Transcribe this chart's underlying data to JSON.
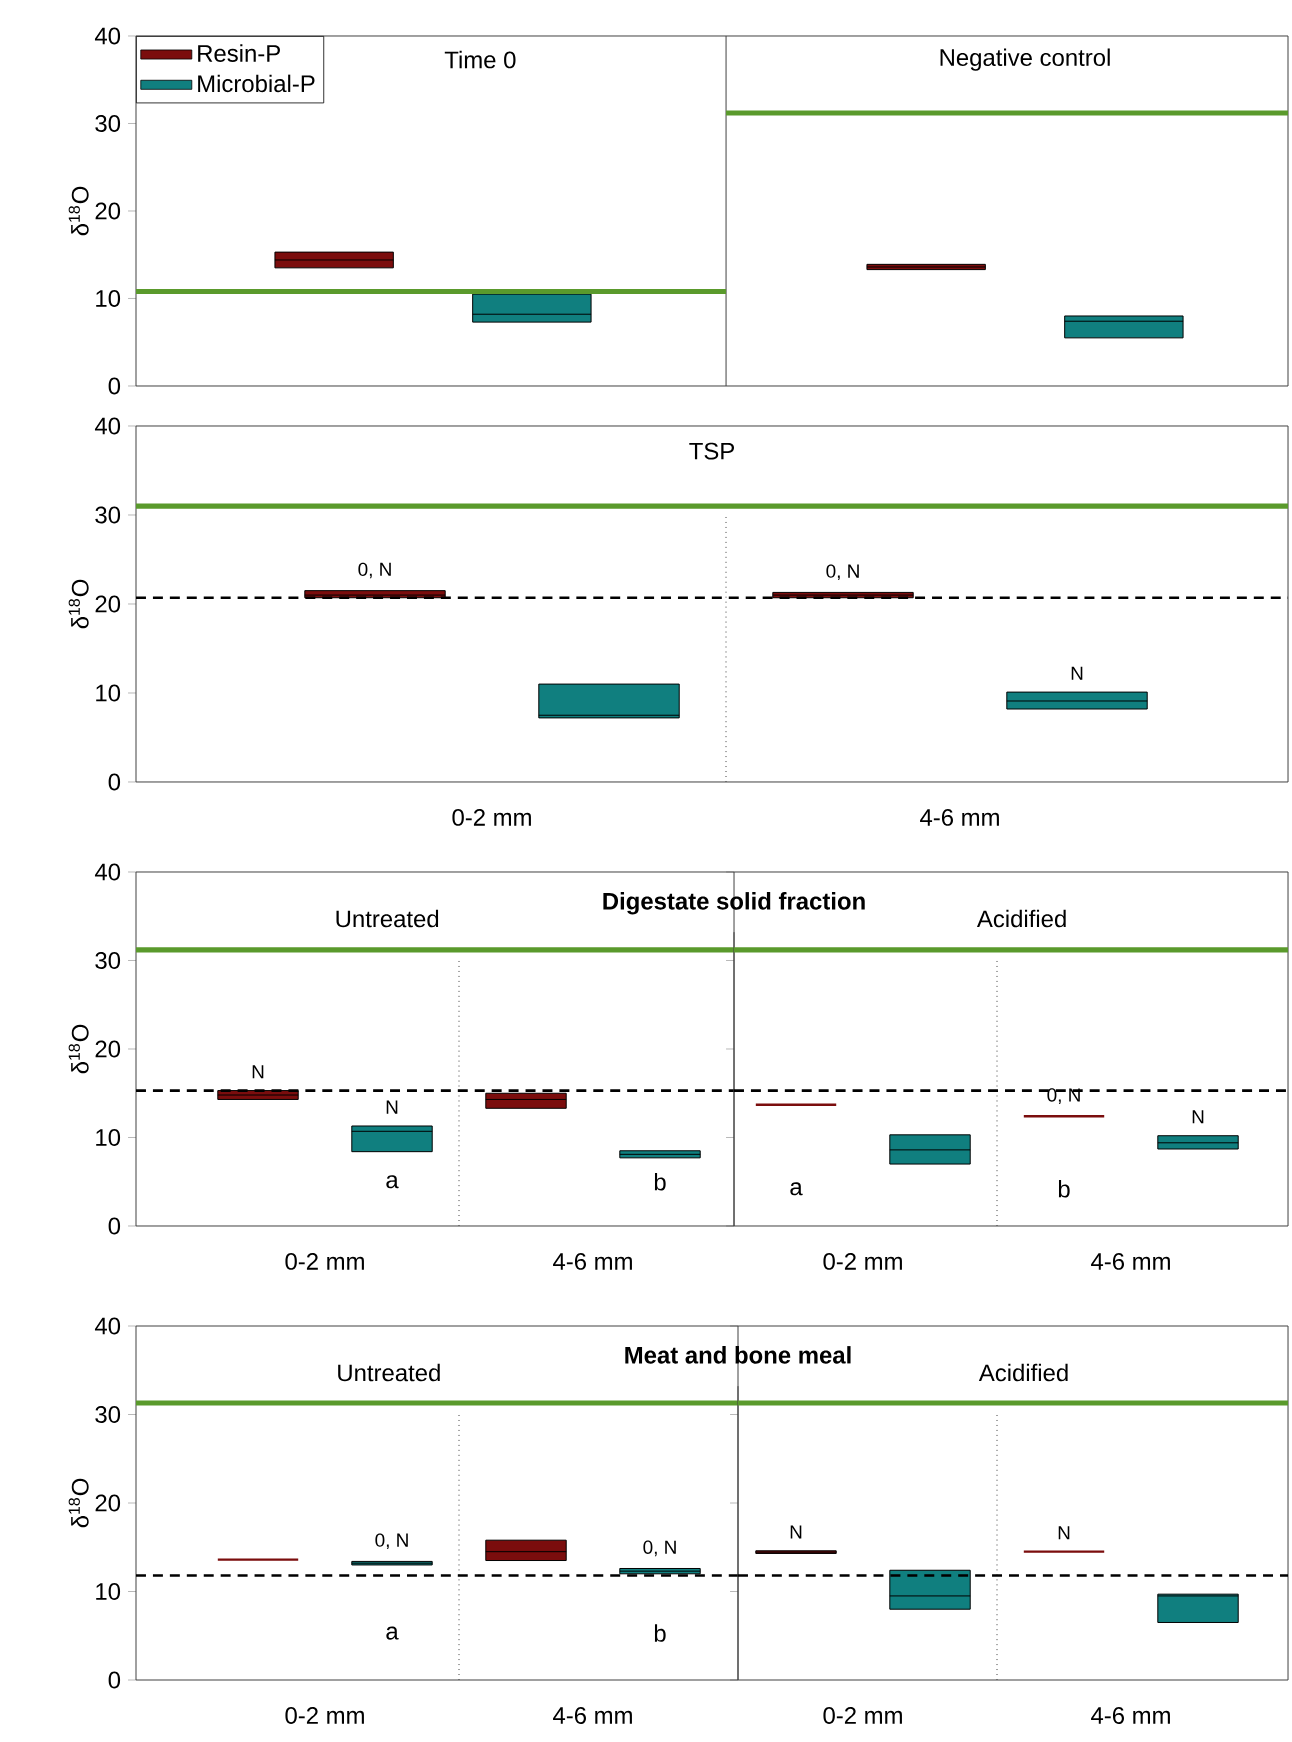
{
  "chart_data": [
    {
      "type": "box",
      "ylabel": "δ$^{18}$O",
      "categories": [
        null,
        null
      ],
      "ylim": [
        0,
        40
      ],
      "yticks": [
        0,
        10,
        20,
        30,
        40
      ],
      "tick_labels": "y",
      "legend": "top left",
      "series": [
        {
          "name": "Resin-P",
          "color": "#7b0d0d",
          "boxes": [
            {
              "low": 13.5,
              "q1": 13.5,
              "median": 14.4,
              "q3": 15.3,
              "high": 15.3
            },
            {
              "low": 13.3,
              "q1": 13.3,
              "median": 13.6,
              "q3": 13.9,
              "high": 13.9
            }
          ]
        },
        {
          "name": "Microbial-P",
          "color": "#107f7f",
          "boxes": [
            {
              "low": 7.3,
              "q1": 7.3,
              "median": 8.2,
              "q3": 10.5,
              "high": 10.5
            },
            {
              "low": 5.5,
              "q1": 5.5,
              "median": 7.4,
              "q3": 8.0,
              "high": 8.0
            }
          ]
        }
      ],
      "ref_lines": [
        {
          "axis": "y",
          "value": 10.8,
          "color": "#5a9a2c"
        },
        {
          "axis": "y",
          "value": 31.2,
          "color": "#5a9a2c"
        }
      ],
      "annotations": [
        "Time 0",
        "Negative control"
      ]
    },
    {
      "type": "box",
      "title": "TSP",
      "ylabel": "δ$^{18}$O",
      "categories": [
        "0-2 mm",
        "4-6 mm"
      ],
      "ylim": [
        0,
        40
      ],
      "yticks": [
        0,
        10,
        20,
        30,
        40
      ],
      "series": [
        {
          "color": "#7b0d0d",
          "boxes": [
            {
              "low": 20.7,
              "q1": 20.7,
              "median": 21.0,
              "q3": 21.5,
              "high": 21.5
            },
            {
              "low": 20.7,
              "q1": 20.7,
              "median": 21.0,
              "q3": 21.3,
              "high": 21.3
            }
          ],
          "value_labels": [
            "0, N",
            "0, N"
          ]
        },
        {
          "color": "#107f7f",
          "boxes": [
            {
              "low": 7.2,
              "q1": 7.2,
              "median": 7.5,
              "q3": 11.0,
              "high": 11.0
            },
            {
              "low": 8.2,
              "q1": 8.2,
              "median": 9.1,
              "q3": 10.1,
              "high": 10.1
            }
          ],
          "value_labels": [
            null,
            "N"
          ]
        }
      ],
      "ref_lines": [
        {
          "axis": "y",
          "value": 31.0,
          "color": "#5a9a2c"
        },
        {
          "axis": "y",
          "value": 20.7,
          "color": "#000000",
          "line_style": "dashed"
        }
      ]
    },
    {
      "type": "box",
      "title": "Digestate solid fraction",
      "subtitle": "Untreated",
      "ylabel": "δ$^{18}$O",
      "categories": [
        "0-2 mm",
        "4-6 mm"
      ],
      "ylim": [
        0,
        40
      ],
      "yticks": [
        0,
        10,
        20,
        30,
        40
      ],
      "series": [
        {
          "color": "#7b0d0d",
          "boxes": [
            {
              "low": 14.3,
              "q1": 14.3,
              "median": 14.8,
              "q3": 15.3,
              "high": 15.3
            },
            {
              "low": 13.3,
              "q1": 13.3,
              "median": 14.3,
              "q3": 15.0,
              "high": 15.0
            }
          ],
          "value_labels": [
            "N",
            null
          ]
        },
        {
          "color": "#107f7f",
          "boxes": [
            {
              "low": 8.4,
              "q1": 8.4,
              "median": 10.7,
              "q3": 11.3,
              "high": 11.3
            },
            {
              "low": 7.7,
              "q1": 7.7,
              "median": 8.1,
              "q3": 8.5,
              "high": 8.5
            }
          ],
          "value_labels": [
            "N",
            null
          ]
        }
      ],
      "ref_lines": [
        {
          "axis": "y",
          "value": 31.2,
          "color": "#5a9a2c"
        },
        {
          "axis": "y",
          "value": 15.3,
          "color": "#000000",
          "line_style": "dashed"
        }
      ],
      "annotations": [
        "a",
        "b"
      ]
    },
    {
      "type": "box",
      "subtitle": "Acidified",
      "categories": [
        "0-2 mm",
        "4-6 mm"
      ],
      "ylim": [
        0,
        40
      ],
      "yticks": [
        0,
        10,
        20,
        30,
        40
      ],
      "tick_labels": "x",
      "series": [
        {
          "color": "#7b0d0d",
          "boxes": [
            {
              "low": 13.7,
              "q1": 13.7,
              "median": 13.7,
              "q3": 13.7,
              "high": 13.7
            },
            {
              "low": 12.4,
              "q1": 12.4,
              "median": 12.4,
              "q3": 12.4,
              "high": 12.4
            }
          ],
          "value_labels": [
            null,
            "0, N"
          ]
        },
        {
          "color": "#107f7f",
          "boxes": [
            {
              "low": 7.0,
              "q1": 7.0,
              "median": 8.6,
              "q3": 10.3,
              "high": 10.3
            },
            {
              "low": 8.7,
              "q1": 8.7,
              "median": 9.4,
              "q3": 10.2,
              "high": 10.2
            }
          ],
          "value_labels": [
            null,
            "N"
          ]
        }
      ],
      "ref_lines": [
        {
          "axis": "y",
          "value": 31.2,
          "color": "#5a9a2c"
        },
        {
          "axis": "y",
          "value": 15.3,
          "color": "#000000",
          "line_style": "dashed"
        }
      ],
      "annotations": [
        "a",
        "b"
      ]
    },
    {
      "type": "box",
      "title": "Meat and bone meal",
      "subtitle": "Untreated",
      "ylabel": "δ$^{18}$O",
      "categories": [
        "0-2 mm",
        "4-6 mm"
      ],
      "ylim": [
        0,
        40
      ],
      "yticks": [
        0,
        10,
        20,
        30,
        40
      ],
      "series": [
        {
          "color": "#7b0d0d",
          "boxes": [
            {
              "low": 13.6,
              "q1": 13.6,
              "median": 13.6,
              "q3": 13.6,
              "high": 13.6
            },
            {
              "low": 13.5,
              "q1": 13.5,
              "median": 14.5,
              "q3": 15.8,
              "high": 15.8
            }
          ]
        },
        {
          "color": "#107f7f",
          "boxes": [
            {
              "low": 13.0,
              "q1": 13.0,
              "median": 13.2,
              "q3": 13.4,
              "high": 13.4
            },
            {
              "low": 12.0,
              "q1": 12.0,
              "median": 12.3,
              "q3": 12.6,
              "high": 12.6
            }
          ],
          "value_labels": [
            "0, N",
            "0, N"
          ]
        }
      ],
      "ref_lines": [
        {
          "axis": "y",
          "value": 31.3,
          "color": "#5a9a2c"
        },
        {
          "axis": "y",
          "value": 11.8,
          "color": "#000000",
          "line_style": "dashed"
        }
      ],
      "annotations": [
        "a",
        "b"
      ]
    },
    {
      "type": "box",
      "subtitle": "Acidified",
      "categories": [
        "0-2 mm",
        "4-6 mm"
      ],
      "ylim": [
        0,
        40
      ],
      "yticks": [
        0,
        10,
        20,
        30,
        40
      ],
      "tick_labels": "x",
      "series": [
        {
          "color": "#7b0d0d",
          "boxes": [
            {
              "low": 14.3,
              "q1": 14.3,
              "median": 14.45,
              "q3": 14.6,
              "high": 14.6
            },
            {
              "low": 14.5,
              "q1": 14.5,
              "median": 14.5,
              "q3": 14.5,
              "high": 14.5
            }
          ],
          "value_labels": [
            "N",
            "N"
          ]
        },
        {
          "color": "#107f7f",
          "boxes": [
            {
              "low": 8.0,
              "q1": 8.0,
              "median": 9.5,
              "q3": 12.4,
              "high": 12.4
            },
            {
              "low": 6.5,
              "q1": 6.5,
              "median": 9.5,
              "q3": 9.7,
              "high": 9.7
            }
          ]
        }
      ],
      "ref_lines": [
        {
          "axis": "y",
          "value": 31.3,
          "color": "#5a9a2c"
        },
        {
          "axis": "y",
          "value": 11.8,
          "color": "#000000",
          "line_style": "dashed"
        }
      ]
    }
  ]
}
